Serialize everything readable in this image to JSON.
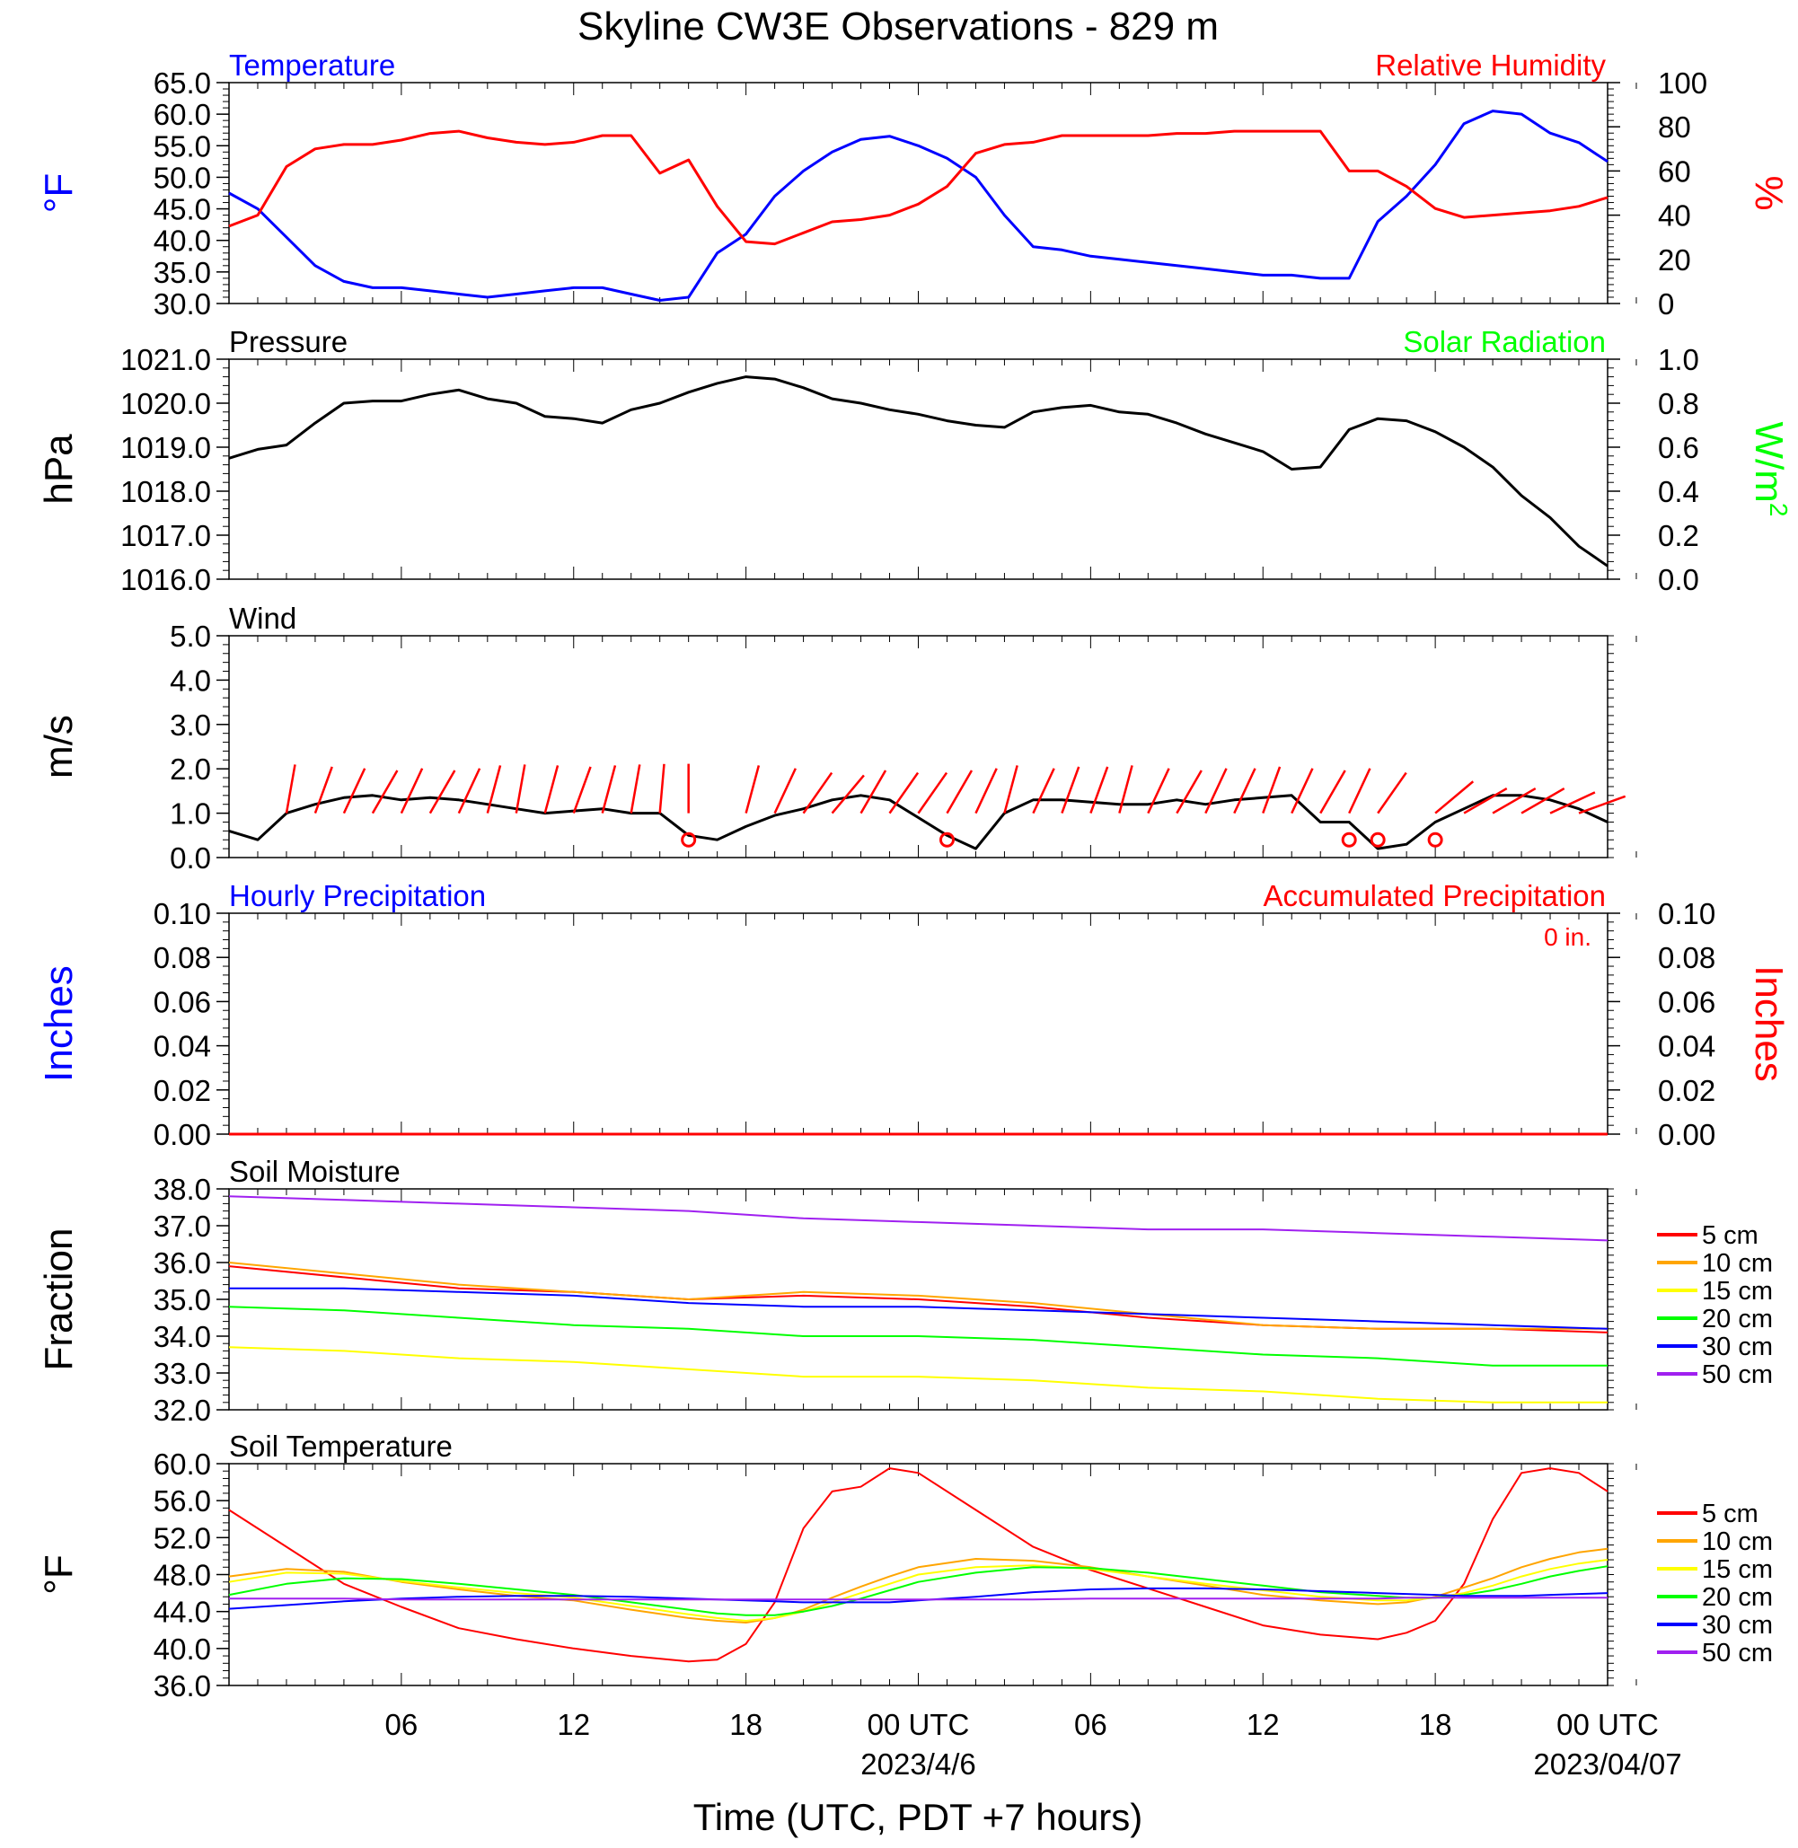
{
  "title": "Skyline CW3E Observations - 829 m",
  "xlabel": "Time (UTC, PDT +7 hours)",
  "x_ticks": [
    "06",
    "12",
    "18",
    "00 UTC",
    "06",
    "12",
    "18",
    "00 UTC"
  ],
  "date_labels": [
    "2023/4/6",
    "2023/04/07"
  ],
  "colors": {
    "temperature": "#0000ff",
    "humidity": "#ff0000",
    "solar": "#00ff00",
    "orange": "#ffa500",
    "yellow": "#ffff00",
    "purple": "#a020f0",
    "black": "#000000"
  },
  "chart_data": [
    {
      "id": "temp_rh",
      "type": "line",
      "left_title": "Temperature",
      "right_title": "Relative Humidity",
      "ylabel": "°F",
      "ylabel2": "%",
      "ylim": [
        30,
        65
      ],
      "ylim2": [
        0,
        100
      ],
      "yticks": [
        "30.0",
        "35.0",
        "40.0",
        "45.0",
        "50.0",
        "55.0",
        "60.0",
        "65.0"
      ],
      "yticks2": [
        "0",
        "20",
        "40",
        "60",
        "80",
        "100"
      ],
      "x_hours": [
        0,
        1,
        2,
        3,
        4,
        5,
        6,
        7,
        8,
        9,
        10,
        11,
        12,
        13,
        14,
        15,
        16,
        17,
        18,
        19,
        20,
        21,
        22,
        23,
        24,
        25,
        26,
        27,
        28,
        29,
        30,
        31,
        32,
        33,
        34,
        35,
        36,
        37,
        38,
        39,
        40,
        41,
        42,
        43,
        44,
        45,
        46,
        47,
        48
      ],
      "series": [
        {
          "name": "Temperature",
          "axis": "left",
          "color": "#0000ff",
          "values": [
            47.5,
            45,
            40.5,
            36,
            33.5,
            32.5,
            32.5,
            32,
            31.5,
            31,
            31.5,
            32,
            32.5,
            32.5,
            31.5,
            30.5,
            31,
            38,
            41,
            47,
            51,
            54,
            56,
            56.5,
            55,
            53,
            50,
            44,
            39,
            38.5,
            37.5,
            37,
            36.5,
            36,
            35.5,
            35,
            34.5,
            34.5,
            34,
            34,
            43,
            47,
            52,
            58.5,
            60.5,
            60,
            57,
            55.5,
            52.5
          ]
        },
        {
          "name": "Relative Humidity",
          "axis": "right",
          "color": "#ff0000",
          "values": [
            35,
            40,
            62,
            70,
            72,
            72,
            74,
            77,
            78,
            75,
            73,
            72,
            73,
            76,
            76,
            59,
            65,
            44,
            28,
            27,
            32,
            37,
            38,
            40,
            45,
            53,
            68,
            72,
            73,
            76,
            76,
            76,
            76,
            77,
            77,
            78,
            78,
            78,
            78,
            60,
            60,
            53,
            43,
            39,
            40,
            41,
            42,
            44,
            48
          ]
        }
      ]
    },
    {
      "id": "pressure_solar",
      "type": "line",
      "left_title": "Pressure",
      "right_title": "Solar Radiation",
      "ylabel": "hPa",
      "ylabel2": "W/m",
      "ylabel2_sup": "2",
      "ylim": [
        1016,
        1021
      ],
      "ylim2": [
        0,
        1
      ],
      "yticks": [
        "1016.0",
        "1017.0",
        "1018.0",
        "1019.0",
        "1020.0",
        "1021.0"
      ],
      "yticks2": [
        "0.0",
        "0.2",
        "0.4",
        "0.6",
        "0.8",
        "1.0"
      ],
      "x_hours": [
        0,
        1,
        2,
        3,
        4,
        5,
        6,
        7,
        8,
        9,
        10,
        11,
        12,
        13,
        14,
        15,
        16,
        17,
        18,
        19,
        20,
        21,
        22,
        23,
        24,
        25,
        26,
        27,
        28,
        29,
        30,
        31,
        32,
        33,
        34,
        35,
        36,
        37,
        38,
        39,
        40,
        41,
        42,
        43,
        44,
        45,
        46,
        47,
        48
      ],
      "series": [
        {
          "name": "Pressure",
          "axis": "left",
          "color": "#000000",
          "values": [
            1018.75,
            1018.95,
            1019.05,
            1019.55,
            1020.0,
            1020.05,
            1020.05,
            1020.2,
            1020.3,
            1020.1,
            1020.0,
            1019.7,
            1019.65,
            1019.55,
            1019.85,
            1020.0,
            1020.25,
            1020.45,
            1020.6,
            1020.55,
            1020.35,
            1020.1,
            1020.0,
            1019.85,
            1019.75,
            1019.6,
            1019.5,
            1019.45,
            1019.8,
            1019.9,
            1019.95,
            1019.8,
            1019.75,
            1019.55,
            1019.3,
            1019.1,
            1018.9,
            1018.5,
            1018.55,
            1019.4,
            1019.65,
            1019.6,
            1019.35,
            1019.0,
            1018.55,
            1017.9,
            1017.4,
            1016.75,
            1016.3
          ]
        }
      ]
    },
    {
      "id": "wind",
      "type": "line",
      "left_title": "Wind",
      "ylabel": "m/s",
      "ylim": [
        0,
        5
      ],
      "yticks": [
        "0.0",
        "1.0",
        "2.0",
        "3.0",
        "4.0",
        "5.0"
      ],
      "x_hours": [
        0,
        1,
        2,
        3,
        4,
        5,
        6,
        7,
        8,
        9,
        10,
        11,
        12,
        13,
        14,
        15,
        16,
        17,
        18,
        19,
        20,
        21,
        22,
        23,
        24,
        25,
        26,
        27,
        28,
        29,
        30,
        31,
        32,
        33,
        34,
        35,
        36,
        37,
        38,
        39,
        40,
        41,
        42,
        43,
        44,
        45,
        46,
        47,
        48
      ],
      "series": [
        {
          "name": "Wind speed",
          "color": "#000000",
          "values": [
            0.6,
            0.4,
            1.0,
            1.2,
            1.35,
            1.4,
            1.3,
            1.35,
            1.3,
            1.2,
            1.1,
            1.0,
            1.05,
            1.1,
            1.0,
            1.0,
            0.5,
            0.4,
            0.7,
            0.95,
            1.1,
            1.3,
            1.4,
            1.3,
            0.9,
            0.5,
            0.2,
            1.0,
            1.3,
            1.3,
            1.25,
            1.2,
            1.2,
            1.3,
            1.2,
            1.3,
            1.35,
            1.4,
            0.8,
            0.8,
            0.2,
            0.3,
            0.8,
            1.1,
            1.4,
            1.4,
            1.3,
            1.1,
            0.8
          ]
        }
      ],
      "barbs_hours": [
        2,
        3,
        4,
        5,
        6,
        7,
        8,
        9,
        10,
        11,
        12,
        13,
        14,
        15,
        16,
        18,
        19,
        20,
        21,
        22,
        23,
        24,
        25,
        26,
        27,
        28,
        29,
        30,
        31,
        32,
        33,
        34,
        35,
        36,
        37,
        38,
        39,
        40,
        42,
        43,
        44,
        45,
        46,
        47
      ],
      "barbs_dir_deg": [
        190,
        200,
        205,
        210,
        205,
        210,
        205,
        195,
        190,
        195,
        200,
        195,
        190,
        185,
        180,
        195,
        205,
        215,
        220,
        210,
        215,
        215,
        210,
        205,
        195,
        205,
        200,
        200,
        195,
        205,
        210,
        205,
        205,
        200,
        205,
        210,
        205,
        215,
        230,
        240,
        240,
        240,
        245,
        250
      ],
      "calm_hours": [
        16,
        25,
        39,
        40,
        42
      ]
    },
    {
      "id": "precip",
      "type": "line",
      "left_title": "Hourly Precipitation",
      "right_title": "Accumulated Precipitation",
      "annotation": "0 in.",
      "ylabel": "Inches",
      "ylabel2": "Inches",
      "ylim": [
        0,
        0.1
      ],
      "ylim2": [
        0,
        0.1
      ],
      "yticks": [
        "0.00",
        "0.02",
        "0.04",
        "0.06",
        "0.08",
        "0.10"
      ],
      "yticks2": [
        "0.00",
        "0.02",
        "0.04",
        "0.06",
        "0.08",
        "0.10"
      ],
      "x_hours": [
        0,
        48
      ],
      "series": [
        {
          "name": "Hourly Precipitation",
          "axis": "left",
          "color": "#0000ff",
          "values": [
            0,
            0
          ]
        },
        {
          "name": "Accumulated Precipitation",
          "axis": "right",
          "color": "#ff0000",
          "values": [
            0,
            0
          ]
        }
      ]
    },
    {
      "id": "soil_moisture",
      "type": "line",
      "left_title": "Soil Moisture",
      "ylabel": "Fraction",
      "ylim": [
        32,
        38
      ],
      "yticks": [
        "32.0",
        "33.0",
        "34.0",
        "35.0",
        "36.0",
        "37.0",
        "38.0"
      ],
      "x_hours": [
        0,
        4,
        8,
        12,
        16,
        20,
        24,
        28,
        32,
        36,
        40,
        44,
        48
      ],
      "series": [
        {
          "name": "5 cm",
          "color": "#ff0000",
          "values": [
            35.9,
            35.6,
            35.3,
            35.2,
            35.0,
            35.1,
            35.0,
            34.8,
            34.5,
            34.3,
            34.2,
            34.2,
            34.1
          ]
        },
        {
          "name": "10 cm",
          "color": "#ffa500",
          "values": [
            36.0,
            35.7,
            35.4,
            35.2,
            35.0,
            35.2,
            35.1,
            34.9,
            34.6,
            34.3,
            34.2,
            34.2,
            34.2
          ]
        },
        {
          "name": "15 cm",
          "color": "#ffff00",
          "values": [
            33.7,
            33.6,
            33.4,
            33.3,
            33.1,
            32.9,
            32.9,
            32.8,
            32.6,
            32.5,
            32.3,
            32.2,
            32.2
          ]
        },
        {
          "name": "20 cm",
          "color": "#00ff00",
          "values": [
            34.8,
            34.7,
            34.5,
            34.3,
            34.2,
            34.0,
            34.0,
            33.9,
            33.7,
            33.5,
            33.4,
            33.2,
            33.2
          ]
        },
        {
          "name": "30 cm",
          "color": "#0000ff",
          "values": [
            35.3,
            35.3,
            35.2,
            35.1,
            34.9,
            34.8,
            34.8,
            34.7,
            34.6,
            34.5,
            34.4,
            34.3,
            34.2
          ]
        },
        {
          "name": "50 cm",
          "color": "#a020f0",
          "values": [
            37.8,
            37.7,
            37.6,
            37.5,
            37.4,
            37.2,
            37.1,
            37.0,
            36.9,
            36.9,
            36.8,
            36.7,
            36.6
          ]
        }
      ]
    },
    {
      "id": "soil_temperature",
      "type": "line",
      "left_title": "Soil Temperature",
      "ylabel": "°F",
      "ylim": [
        36,
        60
      ],
      "yticks": [
        "36.0",
        "40.0",
        "44.0",
        "48.0",
        "52.0",
        "56.0",
        "60.0"
      ],
      "x_hours": [
        0,
        2,
        4,
        6,
        8,
        10,
        12,
        14,
        16,
        17,
        18,
        19,
        20,
        21,
        22,
        23,
        24,
        26,
        28,
        30,
        32,
        34,
        36,
        38,
        40,
        41,
        42,
        43,
        44,
        45,
        46,
        47,
        48
      ],
      "series": [
        {
          "name": "5 cm",
          "color": "#ff0000",
          "values": [
            55,
            51,
            47,
            44.5,
            42.2,
            41,
            40,
            39.2,
            38.6,
            38.8,
            40.5,
            45,
            53,
            57,
            57.5,
            59.5,
            59,
            55,
            51,
            48.5,
            46.5,
            44.5,
            42.5,
            41.5,
            41,
            41.7,
            43,
            47,
            54,
            59,
            59.5,
            59,
            57
          ]
        },
        {
          "name": "10 cm",
          "color": "#ffa500",
          "values": [
            47.8,
            48.6,
            48.3,
            47.2,
            46.4,
            45.7,
            45.2,
            44.2,
            43.3,
            43,
            42.8,
            43.3,
            44.2,
            45.5,
            46.7,
            47.8,
            48.8,
            49.7,
            49.5,
            48.8,
            47.8,
            46.8,
            45.8,
            45.2,
            44.8,
            45,
            45.6,
            46.6,
            47.6,
            48.8,
            49.7,
            50.4,
            50.8
          ]
        },
        {
          "name": "15 cm",
          "color": "#ffff00",
          "values": [
            47.2,
            48.2,
            48.1,
            47.3,
            46.6,
            46,
            45.5,
            44.6,
            43.7,
            43.3,
            43,
            43.3,
            44,
            45,
            46,
            47,
            48,
            48.8,
            49,
            48.6,
            47.8,
            47,
            46.3,
            45.6,
            45.2,
            45.2,
            45.5,
            46,
            46.8,
            47.8,
            48.6,
            49.2,
            49.6
          ]
        },
        {
          "name": "20 cm",
          "color": "#00ff00",
          "values": [
            45.8,
            47,
            47.6,
            47.5,
            47,
            46.4,
            45.8,
            45,
            44.2,
            43.8,
            43.6,
            43.6,
            44,
            44.6,
            45.4,
            46.3,
            47.2,
            48.2,
            48.8,
            48.7,
            48.2,
            47.5,
            46.8,
            46.1,
            45.7,
            45.5,
            45.5,
            45.8,
            46.3,
            47,
            47.8,
            48.4,
            48.9
          ]
        },
        {
          "name": "30 cm",
          "color": "#0000ff",
          "values": [
            44.3,
            44.7,
            45.1,
            45.4,
            45.6,
            45.7,
            45.7,
            45.6,
            45.4,
            45.3,
            45.2,
            45.1,
            45,
            45,
            45,
            45,
            45.2,
            45.6,
            46.1,
            46.4,
            46.5,
            46.5,
            46.4,
            46.2,
            46,
            45.9,
            45.8,
            45.7,
            45.7,
            45.7,
            45.8,
            45.9,
            46
          ]
        },
        {
          "name": "50 cm",
          "color": "#a020f0",
          "values": [
            45.4,
            45.4,
            45.4,
            45.3,
            45.3,
            45.3,
            45.3,
            45.3,
            45.3,
            45.3,
            45.3,
            45.3,
            45.3,
            45.3,
            45.3,
            45.3,
            45.3,
            45.3,
            45.3,
            45.4,
            45.4,
            45.4,
            45.4,
            45.4,
            45.4,
            45.5,
            45.5,
            45.5,
            45.5,
            45.5,
            45.5,
            45.5,
            45.5
          ]
        }
      ]
    }
  ]
}
